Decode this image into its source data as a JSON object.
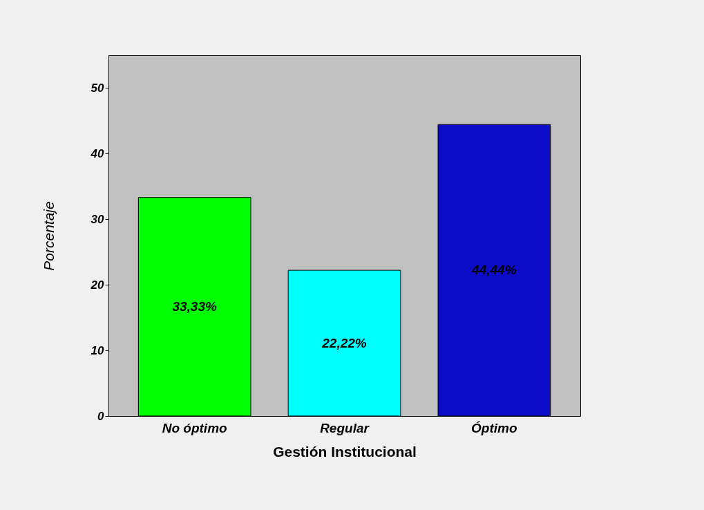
{
  "chart_data": {
    "type": "bar",
    "xlabel": "Gestión Institucional",
    "ylabel": "Porcentaje",
    "categories": [
      "No óptimo",
      "Regular",
      "Óptimo"
    ],
    "values": [
      33.33,
      22.22,
      44.44
    ],
    "colors": [
      "#00ff00",
      "#00ffff",
      "#0c0cc8"
    ],
    "value_labels": [
      "33,33%",
      "22,22%",
      "44,44%"
    ],
    "ylim": [
      0,
      55
    ],
    "yticks": [
      0,
      10,
      20,
      30,
      40,
      50
    ],
    "grid": false,
    "legend": false
  }
}
